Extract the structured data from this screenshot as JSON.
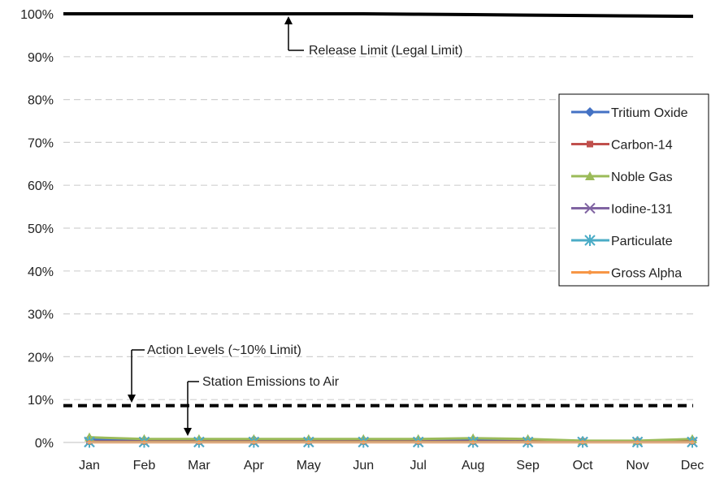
{
  "chart_data": {
    "type": "line",
    "categories": [
      "Jan",
      "Feb",
      "Mar",
      "Apr",
      "May",
      "Jun",
      "Jul",
      "Aug",
      "Sep",
      "Oct",
      "Nov",
      "Dec"
    ],
    "ylim": [
      0,
      100
    ],
    "ytick_labels": [
      "0%",
      "10%",
      "20%",
      "30%",
      "40%",
      "50%",
      "60%",
      "70%",
      "80%",
      "90%",
      "100%"
    ],
    "grid": "horizontal dashed",
    "legend_position": "right",
    "reference_lines": [
      {
        "name": "release-limit",
        "values": [
          100,
          100,
          100,
          100,
          100,
          100,
          99.9,
          99.8,
          99.7,
          99.6,
          99.5,
          99.4
        ],
        "color": "#000000",
        "style": "solid"
      },
      {
        "name": "action-levels",
        "values": [
          8.6,
          8.6,
          8.6,
          8.6,
          8.6,
          8.6,
          8.6,
          8.6,
          8.6,
          8.6,
          8.6,
          8.6
        ],
        "color": "#000000",
        "style": "dashed"
      }
    ],
    "series": [
      {
        "name": "Tritium Oxide",
        "color": "#4472C4",
        "marker": "diamond",
        "values": [
          0.8,
          0.5,
          0.5,
          0.6,
          0.5,
          0.5,
          0.5,
          0.6,
          0.5,
          0.3,
          0.3,
          0.5
        ]
      },
      {
        "name": "Carbon-14",
        "color": "#C0504D",
        "marker": "square",
        "values": [
          0.2,
          0.2,
          0.2,
          0.2,
          0.2,
          0.2,
          0.2,
          0.2,
          0.2,
          0.2,
          0.2,
          0.2
        ]
      },
      {
        "name": "Noble Gas",
        "color": "#9BBB59",
        "marker": "triangle",
        "values": [
          1.2,
          0.8,
          0.8,
          0.8,
          0.8,
          0.8,
          0.8,
          1.0,
          0.8,
          0.4,
          0.4,
          0.8
        ]
      },
      {
        "name": "Iodine-131",
        "color": "#8064A2",
        "marker": "x",
        "values": [
          0.1,
          0.1,
          0.1,
          0.1,
          0.1,
          0.1,
          0.1,
          0.1,
          0.1,
          0.1,
          0.1,
          0.1
        ]
      },
      {
        "name": "Particulate",
        "color": "#4BACC6",
        "marker": "star",
        "values": [
          0.1,
          0.1,
          0.1,
          0.1,
          0.1,
          0.1,
          0.1,
          0.1,
          0.1,
          0.1,
          0.1,
          0.1
        ]
      },
      {
        "name": "Gross Alpha",
        "color": "#F79646",
        "marker": "dot",
        "values": [
          0.05,
          0.05,
          0.05,
          0.05,
          0.05,
          0.05,
          0.05,
          0.05,
          0.05,
          0.05,
          0.05,
          0.05
        ]
      }
    ],
    "annotations": {
      "release_limit": "Release Limit (Legal Limit)",
      "action_levels": "Action Levels (~10% Limit)",
      "station_emissions": "Station Emissions to Air"
    }
  }
}
